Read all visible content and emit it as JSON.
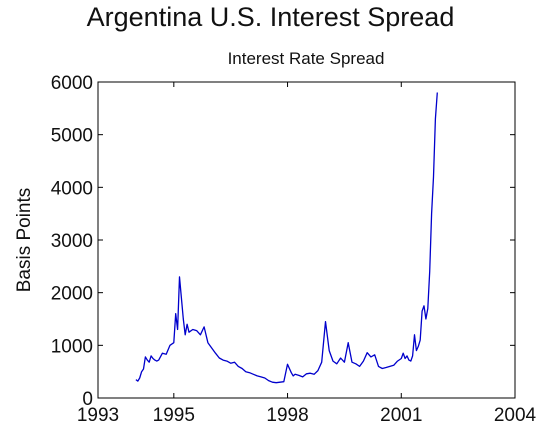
{
  "page_title": "Argentina U.S. Interest Spread",
  "chart_data": {
    "type": "line",
    "title": "Interest Rate Spread",
    "xlabel": "",
    "ylabel": "Basis Points",
    "xlim": [
      1993,
      2004
    ],
    "ylim": [
      0,
      6000
    ],
    "xticks": [
      1993,
      1995,
      1998,
      2001,
      2004
    ],
    "yticks": [
      0,
      1000,
      2000,
      3000,
      4000,
      5000,
      6000
    ],
    "grid": false,
    "line_color": "#0000cc",
    "series": [
      {
        "x": [
          1994.0,
          1994.05,
          1994.1,
          1994.15,
          1994.2,
          1994.25,
          1994.3,
          1994.35,
          1994.4,
          1994.45,
          1994.5,
          1994.55,
          1994.6,
          1994.7,
          1994.8,
          1994.9,
          1995.0,
          1995.05,
          1995.1,
          1995.15,
          1995.2,
          1995.25,
          1995.3,
          1995.35,
          1995.4,
          1995.5,
          1995.6,
          1995.7,
          1995.8,
          1995.9,
          1996.0,
          1996.1,
          1996.2,
          1996.3,
          1996.4,
          1996.5,
          1996.6,
          1996.7,
          1996.8,
          1996.9,
          1997.0,
          1997.1,
          1997.2,
          1997.3,
          1997.4,
          1997.5,
          1997.6,
          1997.7,
          1997.8,
          1997.9,
          1998.0,
          1998.05,
          1998.1,
          1998.15,
          1998.2,
          1998.3,
          1998.4,
          1998.5,
          1998.6,
          1998.7,
          1998.8,
          1998.9,
          1999.0,
          1999.1,
          1999.2,
          1999.3,
          1999.4,
          1999.5,
          1999.6,
          1999.7,
          1999.8,
          1999.9,
          2000.0,
          2000.1,
          2000.2,
          2000.3,
          2000.4,
          2000.5,
          2000.6,
          2000.7,
          2000.8,
          2000.9,
          2001.0,
          2001.05,
          2001.1,
          2001.15,
          2001.2,
          2001.25,
          2001.3,
          2001.35,
          2001.4,
          2001.45,
          2001.5,
          2001.55,
          2001.6,
          2001.65,
          2001.7,
          2001.75,
          2001.8,
          2001.85,
          2001.9,
          2001.95
        ],
        "y": [
          350,
          320,
          380,
          500,
          550,
          780,
          720,
          680,
          800,
          750,
          720,
          700,
          720,
          850,
          830,
          1000,
          1050,
          1600,
          1300,
          2300,
          1900,
          1500,
          1200,
          1400,
          1250,
          1300,
          1280,
          1200,
          1350,
          1050,
          950,
          850,
          760,
          720,
          700,
          660,
          680,
          600,
          560,
          500,
          480,
          450,
          420,
          400,
          380,
          330,
          300,
          290,
          300,
          310,
          640,
          560,
          480,
          420,
          450,
          430,
          400,
          460,
          470,
          450,
          520,
          680,
          1450,
          900,
          700,
          650,
          760,
          680,
          1050,
          680,
          650,
          600,
          700,
          860,
          780,
          820,
          600,
          560,
          580,
          600,
          620,
          700,
          750,
          850,
          750,
          800,
          720,
          700,
          800,
          1200,
          900,
          980,
          1100,
          1650,
          1750,
          1500,
          1700,
          2400,
          3500,
          4200,
          5300,
          5800
        ]
      }
    ]
  }
}
